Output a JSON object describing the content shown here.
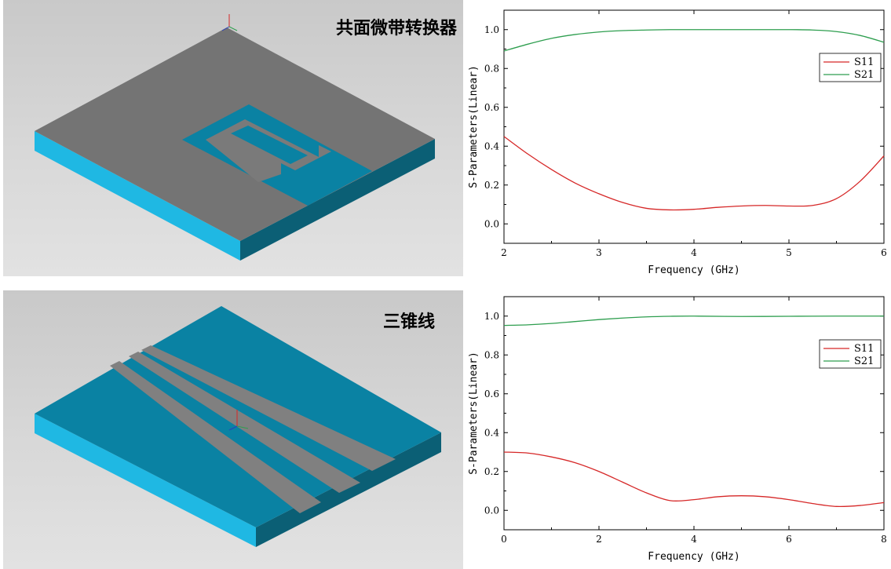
{
  "models": [
    {
      "title": "共面微带转换器"
    },
    {
      "title": "三锥线"
    }
  ],
  "colors": {
    "substrate_gray": "#747474",
    "substrate_blue": "#0a82a3",
    "edge_cyan": "#1fb8e3",
    "edge_dark": "#0b5f75",
    "s11": "#d62828",
    "s21": "#2e9e4f"
  },
  "chart_data": [
    {
      "type": "line",
      "xlabel": "Frequency (GHz)",
      "ylabel": "S-Parameters(Linear)",
      "xlim": [
        2,
        6
      ],
      "ylim": [
        -0.1,
        1.1
      ],
      "xticks": [
        "2",
        "3",
        "4",
        "5",
        "6"
      ],
      "yticks": [
        "0.0",
        "0.2",
        "0.4",
        "0.6",
        "0.8",
        "1.0"
      ],
      "legend": [
        "S11",
        "S21"
      ],
      "legend_position": "top-right",
      "series": [
        {
          "name": "S11",
          "x": [
            2,
            2.25,
            2.5,
            2.75,
            3,
            3.25,
            3.5,
            3.75,
            4,
            4.25,
            4.5,
            4.75,
            5,
            5.25,
            5.5,
            5.75,
            6
          ],
          "y": [
            0.45,
            0.36,
            0.28,
            0.21,
            0.155,
            0.11,
            0.08,
            0.072,
            0.075,
            0.085,
            0.092,
            0.095,
            0.092,
            0.095,
            0.13,
            0.22,
            0.35
          ]
        },
        {
          "name": "S21",
          "x": [
            2,
            2.25,
            2.5,
            2.75,
            3,
            3.25,
            3.5,
            3.75,
            4,
            4.5,
            5,
            5.25,
            5.5,
            5.75,
            6
          ],
          "y": [
            0.89,
            0.925,
            0.955,
            0.975,
            0.988,
            0.995,
            0.998,
            1.0,
            1.0,
            1.0,
            1.0,
            0.998,
            0.99,
            0.97,
            0.935
          ]
        }
      ]
    },
    {
      "type": "line",
      "xlabel": "Frequency (GHz)",
      "ylabel": "S-Parameters(Linear)",
      "xlim": [
        0,
        8
      ],
      "ylim": [
        -0.1,
        1.1
      ],
      "xticks": [
        "0",
        "2",
        "4",
        "6",
        "8"
      ],
      "yticks": [
        "0.0",
        "0.2",
        "0.4",
        "0.6",
        "0.8",
        "1.0"
      ],
      "legend": [
        "S11",
        "S21"
      ],
      "legend_position": "top-right",
      "series": [
        {
          "name": "S11",
          "x": [
            0,
            0.5,
            1,
            1.5,
            2,
            2.5,
            3,
            3.5,
            4,
            4.5,
            5,
            5.5,
            6,
            6.5,
            7,
            7.5,
            8
          ],
          "y": [
            0.3,
            0.295,
            0.275,
            0.245,
            0.2,
            0.145,
            0.09,
            0.05,
            0.055,
            0.07,
            0.075,
            0.07,
            0.055,
            0.035,
            0.02,
            0.025,
            0.04
          ]
        },
        {
          "name": "S21",
          "x": [
            0,
            0.5,
            1,
            1.5,
            2,
            2.5,
            3,
            3.5,
            4,
            5,
            6,
            7,
            8
          ],
          "y": [
            0.952,
            0.955,
            0.962,
            0.972,
            0.982,
            0.99,
            0.996,
            0.999,
            1.0,
            0.998,
            0.999,
            1.0,
            1.0
          ]
        }
      ]
    }
  ]
}
